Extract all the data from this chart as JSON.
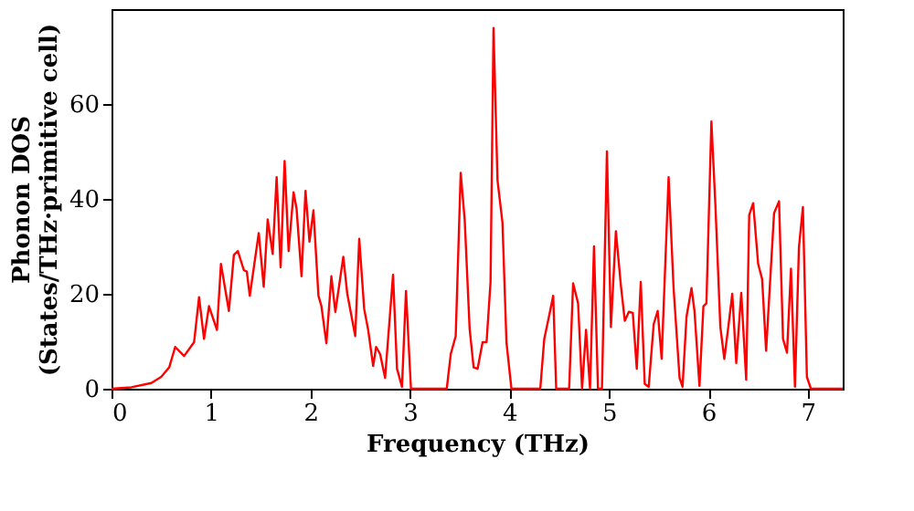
{
  "chart_data": {
    "type": "line",
    "xlabel": "Frequency (THz)",
    "ylabel": "Phonon DOS\n(States/THz·primitive cell)",
    "xlim": [
      0,
      7.35
    ],
    "ylim": [
      0,
      80
    ],
    "xticks": [
      0,
      1,
      2,
      3,
      4,
      5,
      6,
      7
    ],
    "yticks": [
      0,
      20,
      40,
      60
    ],
    "grid": false,
    "legend": false,
    "marker": "none",
    "line_style": "solid",
    "series": [
      {
        "color": "#ff0000",
        "x": [
          0,
          0.2,
          0.4,
          0.5,
          0.58,
          0.64,
          0.73,
          0.83,
          0.88,
          0.93,
          0.98,
          1.06,
          1.1,
          1.18,
          1.23,
          1.27,
          1.33,
          1.36,
          1.39,
          1.48,
          1.53,
          1.57,
          1.62,
          1.66,
          1.7,
          1.74,
          1.78,
          1.83,
          1.86,
          1.91,
          1.95,
          1.99,
          2.03,
          2.08,
          2.11,
          2.16,
          2.21,
          2.25,
          2.33,
          2.37,
          2.45,
          2.49,
          2.54,
          2.58,
          2.63,
          2.66,
          2.7,
          2.75,
          2.83,
          2.87,
          2.92,
          2.96,
          3.01,
          3.37,
          3.41,
          3.46,
          3.51,
          3.55,
          3.6,
          3.64,
          3.68,
          3.73,
          3.77,
          3.81,
          3.84,
          3.88,
          3.93,
          3.97,
          4.02,
          4.31,
          4.35,
          4.4,
          4.44,
          4.47,
          4.6,
          4.64,
          4.69,
          4.73,
          4.77,
          4.81,
          4.85,
          4.89,
          4.93,
          4.98,
          5.02,
          5.07,
          5.12,
          5.16,
          5.2,
          5.24,
          5.28,
          5.32,
          5.36,
          5.4,
          5.45,
          5.49,
          5.53,
          5.6,
          5.65,
          5.71,
          5.74,
          5.78,
          5.83,
          5.86,
          5.91,
          5.95,
          5.98,
          6.03,
          6.07,
          6.12,
          6.16,
          6.2,
          6.24,
          6.28,
          6.33,
          6.38,
          6.41,
          6.45,
          6.5,
          6.54,
          6.58,
          6.66,
          6.71,
          6.75,
          6.79,
          6.83,
          6.87,
          6.91,
          6.95,
          6.99,
          7.03,
          7.35
        ],
        "values": [
          0,
          0.3,
          1.2,
          2.5,
          4.5,
          8.8,
          6.9,
          9.8,
          19.3,
          10.5,
          17.4,
          12.4,
          26.3,
          16.4,
          28.2,
          29.0,
          25,
          24.7,
          19.6,
          32.8,
          21.5,
          35.7,
          28.4,
          44.6,
          25.6,
          48,
          29,
          41.4,
          38,
          23.7,
          41.7,
          31,
          37.6,
          19.6,
          17.4,
          9.6,
          23.7,
          16.2,
          27.8,
          20,
          11.1,
          31.6,
          16.8,
          12.4,
          4.8,
          8.8,
          7.3,
          2.3,
          24,
          4.2,
          0.4,
          20.6,
          0,
          0,
          7.3,
          11.1,
          45.5,
          35.7,
          12.6,
          4.5,
          4.2,
          9.8,
          9.8,
          22.5,
          76,
          43.9,
          35,
          9.8,
          0,
          0,
          10.5,
          15.5,
          19.6,
          0,
          0,
          22.2,
          18,
          0,
          12.4,
          0,
          30,
          0,
          0,
          50,
          13,
          33.2,
          21.8,
          14.3,
          16.2,
          16,
          4.2,
          22.5,
          1,
          0.4,
          13.6,
          16.4,
          6.3,
          44.6,
          21.2,
          2.3,
          0.4,
          15.2,
          21.2,
          16.4,
          0.6,
          17.4,
          18,
          56.3,
          38.9,
          13,
          6.3,
          13,
          20,
          5.4,
          20.2,
          1.9,
          36.6,
          39.1,
          26.3,
          23.1,
          8,
          37,
          39.5,
          10.5,
          7.6,
          25.3,
          0.4,
          29.8,
          38.3,
          2.5,
          0,
          0
        ]
      }
    ]
  }
}
